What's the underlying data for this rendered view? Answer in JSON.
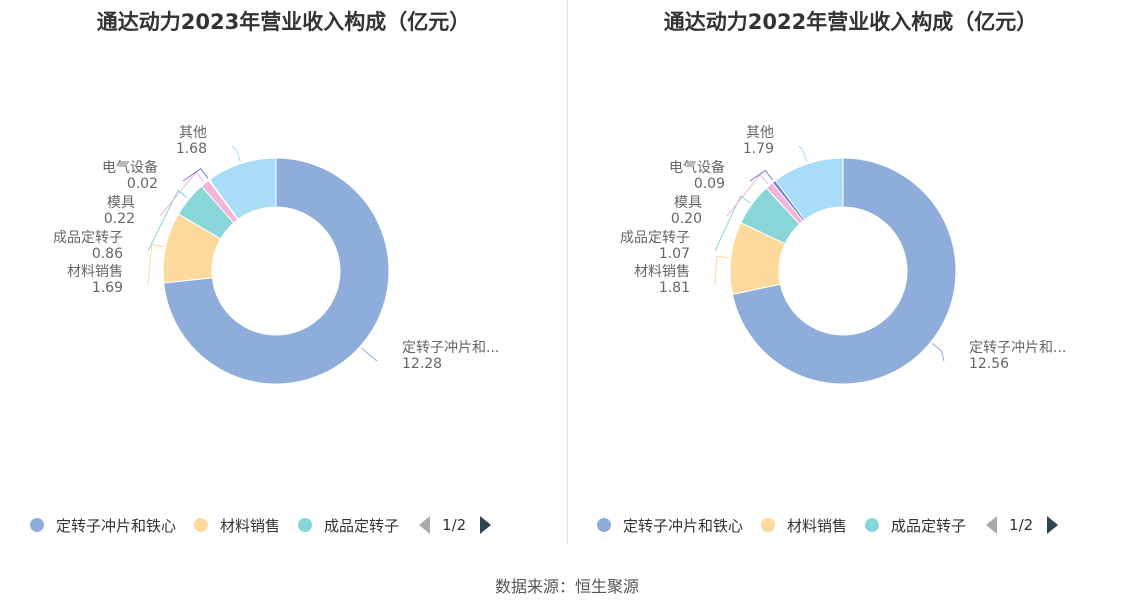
{
  "charts": [
    {
      "title": "通达动力2023年营业收入构成（亿元）",
      "legend_page": "1/2"
    },
    {
      "title": "通达动力2022年营业收入构成（亿元）",
      "legend_page": "1/2"
    }
  ],
  "source": "数据来源：恒生聚源",
  "chart_data": [
    {
      "type": "pie",
      "title": "通达动力2023年营业收入构成（亿元）",
      "categories": [
        "定转子冲片和铁心",
        "材料销售",
        "成品定转子",
        "模具",
        "电气设备",
        "其他"
      ],
      "values": [
        12.28,
        1.69,
        0.86,
        0.22,
        0.02,
        1.68
      ],
      "display_labels": [
        "定转子冲片和...",
        "材料销售",
        "成品定转子",
        "模具",
        "电气设备",
        "其他"
      ],
      "value_labels": [
        "12.28",
        "1.69",
        "0.86",
        "0.22",
        "0.02",
        "1.68"
      ],
      "colors": [
        "#8eaddb",
        "#fdd99b",
        "#89d6d9",
        "#f2b5d6",
        "#6f7fe0",
        "#a8dcf7"
      ],
      "legend_visible": [
        "定转子冲片和铁心",
        "材料销售",
        "成品定转子"
      ],
      "legend_placement": "bottom"
    },
    {
      "type": "pie",
      "title": "通达动力2022年营业收入构成（亿元）",
      "categories": [
        "定转子冲片和铁心",
        "材料销售",
        "成品定转子",
        "模具",
        "电气设备",
        "其他"
      ],
      "values": [
        12.56,
        1.81,
        1.07,
        0.2,
        0.09,
        1.79
      ],
      "display_labels": [
        "定转子冲片和...",
        "材料销售",
        "成品定转子",
        "模具",
        "电气设备",
        "其他"
      ],
      "value_labels": [
        "12.56",
        "1.81",
        "1.07",
        "0.20",
        "0.09",
        "1.79"
      ],
      "colors": [
        "#8eaddb",
        "#fdd99b",
        "#89d6d9",
        "#f2b5d6",
        "#6f7fe0",
        "#a8dcf7"
      ],
      "legend_visible": [
        "定转子冲片和铁心",
        "材料销售",
        "成品定转子"
      ],
      "legend_placement": "bottom"
    }
  ]
}
